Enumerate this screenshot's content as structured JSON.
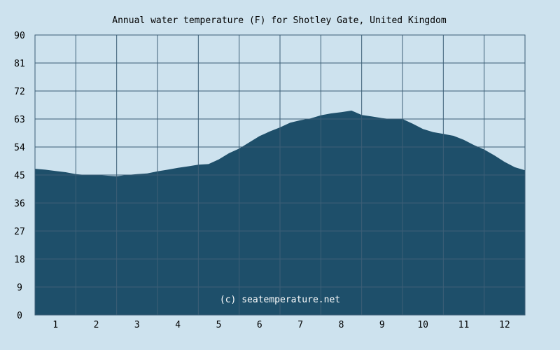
{
  "chart_data": {
    "type": "area",
    "title": "Annual water temperature (F) for Shotley Gate, United Kingdom",
    "watermark": "(c) seatemperature.net",
    "xlabel": "",
    "ylabel": "",
    "ylim": [
      0,
      90
    ],
    "yticks": [
      "0",
      "9",
      "18",
      "27",
      "36",
      "45",
      "54",
      "63",
      "72",
      "81",
      "90"
    ],
    "xticks": [
      "1",
      "2",
      "3",
      "4",
      "5",
      "6",
      "7",
      "8",
      "9",
      "10",
      "11",
      "12"
    ],
    "grid": true,
    "series": [
      {
        "values": [
          [
            0.5,
            47.0
          ],
          [
            0.75,
            46.7
          ],
          [
            1.0,
            46.3
          ],
          [
            1.25,
            45.9
          ],
          [
            1.5,
            45.3
          ],
          [
            1.75,
            45.0
          ],
          [
            2.0,
            45.0
          ],
          [
            2.25,
            44.8
          ],
          [
            2.5,
            44.6
          ],
          [
            2.75,
            45.0
          ],
          [
            3.0,
            45.3
          ],
          [
            3.25,
            45.5
          ],
          [
            3.5,
            46.2
          ],
          [
            3.75,
            46.7
          ],
          [
            4.0,
            47.3
          ],
          [
            4.25,
            47.8
          ],
          [
            4.5,
            48.3
          ],
          [
            4.75,
            48.5
          ],
          [
            5.0,
            50.0
          ],
          [
            5.25,
            52.0
          ],
          [
            5.5,
            53.5
          ],
          [
            5.75,
            55.5
          ],
          [
            6.0,
            57.5
          ],
          [
            6.25,
            59.0
          ],
          [
            6.5,
            60.3
          ],
          [
            6.75,
            61.8
          ],
          [
            7.0,
            62.6
          ],
          [
            7.25,
            63.2
          ],
          [
            7.5,
            64.2
          ],
          [
            7.75,
            64.8
          ],
          [
            8.0,
            65.2
          ],
          [
            8.25,
            65.7
          ],
          [
            8.5,
            64.3
          ],
          [
            8.75,
            63.8
          ],
          [
            9.0,
            63.3
          ],
          [
            9.25,
            62.9
          ],
          [
            9.5,
            63.0
          ],
          [
            9.75,
            61.5
          ],
          [
            10.0,
            59.8
          ],
          [
            10.25,
            58.8
          ],
          [
            10.5,
            58.2
          ],
          [
            10.75,
            57.6
          ],
          [
            11.0,
            56.3
          ],
          [
            11.25,
            54.6
          ],
          [
            11.5,
            53.2
          ],
          [
            11.75,
            51.3
          ],
          [
            12.0,
            49.2
          ],
          [
            12.25,
            47.5
          ],
          [
            12.5,
            46.5
          ]
        ]
      }
    ],
    "colors": {
      "background": "#cde2ee",
      "plot_background": "#cde2ee",
      "fill": "#1e4f6a",
      "grid": "#3d5f77",
      "text": "#000000",
      "watermark": "#ffffff"
    }
  }
}
